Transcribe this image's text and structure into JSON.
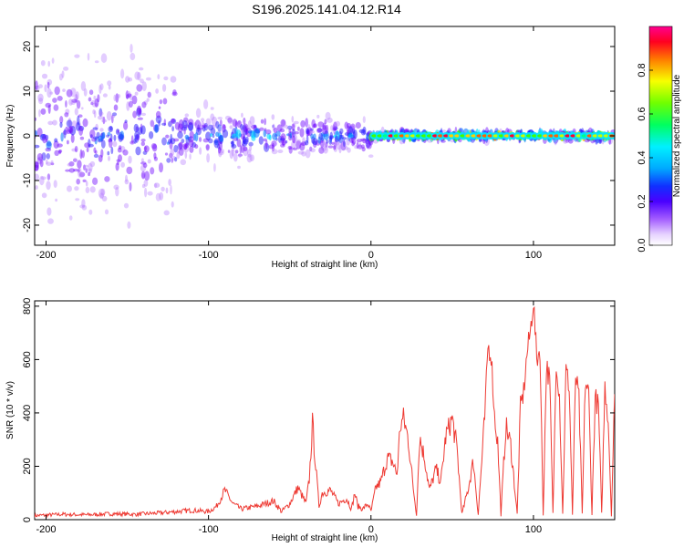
{
  "title": "S196.2025.141.04.12.R14",
  "chart_data": [
    {
      "type": "heatmap",
      "xlabel": "Height of straight line (km)",
      "ylabel": "Frequency (Hz)",
      "xlim": [
        -207,
        150
      ],
      "ylim": [
        -24.5,
        24.5
      ],
      "x_ticks": [
        -200,
        -100,
        0,
        100
      ],
      "y_ticks": [
        20,
        10,
        0,
        -10,
        -20
      ],
      "colorbar": {
        "label": "Normalized spectral amplitude",
        "ticks": [
          0.0,
          0.2,
          0.4,
          0.6,
          0.8
        ],
        "range": [
          0,
          1
        ],
        "colors": [
          "#ffffff",
          "#b57cff",
          "#6a00ff",
          "#2a1aff",
          "#0070ff",
          "#00d8ff",
          "#00ff8a",
          "#40ff00",
          "#c8ff00",
          "#ffd000",
          "#ff6000",
          "#ff0030",
          "#ff0090"
        ]
      },
      "description_bands": [
        {
          "x": [
            -207,
            -120
          ],
          "freq_spread": 24,
          "peak": 0.35
        },
        {
          "x": [
            -120,
            -60
          ],
          "freq_spread": 8,
          "peak": 0.45
        },
        {
          "x": [
            -60,
            0
          ],
          "freq_spread": 6,
          "peak": 0.4
        },
        {
          "x": [
            0,
            150
          ],
          "freq_spread": 1.5,
          "peak": 0.95
        }
      ]
    },
    {
      "type": "line",
      "xlabel": "Height of straight line (km)",
      "ylabel": "SNR (10 * v/v)",
      "xlim": [
        -207,
        150
      ],
      "ylim": [
        0,
        820
      ],
      "x_ticks": [
        -200,
        -100,
        0,
        100
      ],
      "y_ticks": [
        0,
        200,
        400,
        600,
        800
      ],
      "color": "#ee3a33",
      "series": [
        {
          "x": [
            -207,
            -190,
            -175,
            -160,
            -145,
            -130,
            -120,
            -110,
            -100,
            -95,
            -90,
            -85,
            -80,
            -75,
            -70,
            -65,
            -60,
            -55,
            -50,
            -45,
            -40,
            -38,
            -36,
            -34,
            -32,
            -30,
            -25,
            -20,
            -15,
            -12,
            -10,
            -8,
            -5,
            -2,
            0,
            3,
            6,
            10,
            13,
            16,
            18,
            20,
            23,
            26,
            28,
            30,
            33,
            36,
            40,
            43,
            46,
            50,
            53,
            56,
            60,
            63,
            66,
            70,
            72,
            74,
            76,
            78,
            80,
            83,
            86,
            90,
            92,
            94,
            96,
            98,
            100,
            102,
            104,
            106,
            108,
            110,
            112,
            114,
            116,
            118,
            120,
            122,
            124,
            126,
            128,
            130,
            132,
            134,
            136,
            138,
            140,
            142,
            144,
            146,
            148,
            150
          ],
          "y": [
            15,
            20,
            18,
            22,
            20,
            25,
            30,
            35,
            30,
            50,
            110,
            60,
            40,
            45,
            50,
            60,
            70,
            30,
            60,
            120,
            60,
            150,
            360,
            200,
            50,
            100,
            110,
            60,
            80,
            40,
            100,
            50,
            40,
            60,
            30,
            120,
            140,
            230,
            220,
            170,
            350,
            380,
            300,
            120,
            20,
            310,
            230,
            110,
            190,
            140,
            310,
            380,
            260,
            20,
            120,
            220,
            20,
            380,
            650,
            620,
            390,
            290,
            20,
            350,
            280,
            20,
            420,
            480,
            620,
            700,
            820,
            600,
            640,
            20,
            580,
            520,
            20,
            600,
            470,
            20,
            560,
            500,
            20,
            540,
            450,
            20,
            520,
            470,
            20,
            460,
            420,
            20,
            500,
            380,
            20,
            470
          ]
        }
      ]
    }
  ]
}
